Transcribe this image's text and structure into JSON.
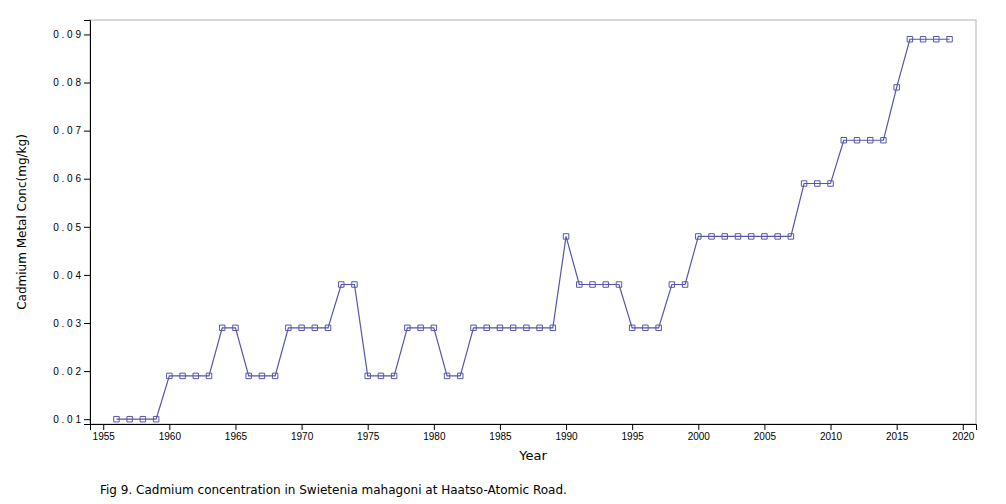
{
  "chart_data": {
    "type": "line",
    "x_label": "Year",
    "y_label": "Cadmium Metal Conc(mg/kg)",
    "caption": "Fig 9. Cadmium concentration in Swietenia mahagoni at Haatso-Atomic Road.",
    "x": [
      1956,
      1957,
      1958,
      1959,
      1960,
      1961,
      1962,
      1963,
      1964,
      1965,
      1966,
      1967,
      1968,
      1969,
      1970,
      1971,
      1972,
      1973,
      1974,
      1975,
      1976,
      1977,
      1978,
      1979,
      1980,
      1981,
      1982,
      1983,
      1984,
      1985,
      1986,
      1987,
      1988,
      1989,
      1990,
      1991,
      1992,
      1993,
      1994,
      1995,
      1996,
      1997,
      1998,
      1999,
      2000,
      2001,
      2002,
      2003,
      2004,
      2005,
      2006,
      2007,
      2008,
      2009,
      2010,
      2011,
      2012,
      2013,
      2014,
      2015,
      2016,
      2017,
      2018,
      2019
    ],
    "values": [
      0.01,
      0.01,
      0.01,
      0.01,
      0.019,
      0.019,
      0.019,
      0.019,
      0.029,
      0.029,
      0.019,
      0.019,
      0.019,
      0.029,
      0.029,
      0.029,
      0.029,
      0.038,
      0.038,
      0.019,
      0.019,
      0.019,
      0.029,
      0.029,
      0.029,
      0.019,
      0.019,
      0.029,
      0.029,
      0.029,
      0.029,
      0.029,
      0.029,
      0.029,
      0.048,
      0.038,
      0.038,
      0.038,
      0.038,
      0.029,
      0.029,
      0.029,
      0.038,
      0.038,
      0.048,
      0.048,
      0.048,
      0.048,
      0.048,
      0.048,
      0.048,
      0.048,
      0.059,
      0.059,
      0.059,
      0.068,
      0.068,
      0.068,
      0.068,
      0.079,
      0.089,
      0.089,
      0.089,
      0.089
    ],
    "color": "#5555aa",
    "marker": "square",
    "xlim": [
      1954,
      2021
    ],
    "ylim": [
      0.009,
      0.093
    ],
    "xticks": [
      1955,
      1960,
      1965,
      1970,
      1975,
      1980,
      1985,
      1990,
      1995,
      2000,
      2005,
      2010,
      2015,
      2020
    ],
    "yticks": [
      {
        "value": 0.01,
        "label": "0 . 0 1"
      },
      {
        "value": 0.02,
        "label": "0 . 0 2"
      },
      {
        "value": 0.03,
        "label": "0 . 0 3"
      },
      {
        "value": 0.04,
        "label": "0 . 0 4"
      },
      {
        "value": 0.05,
        "label": "0 . 0 5"
      },
      {
        "value": 0.06,
        "label": "0 . 0 6"
      },
      {
        "value": 0.07,
        "label": "0 . 0 7"
      },
      {
        "value": 0.08,
        "label": "0 . 0 8"
      },
      {
        "value": 0.09,
        "label": "0 . 0 9"
      }
    ],
    "grid": false
  }
}
